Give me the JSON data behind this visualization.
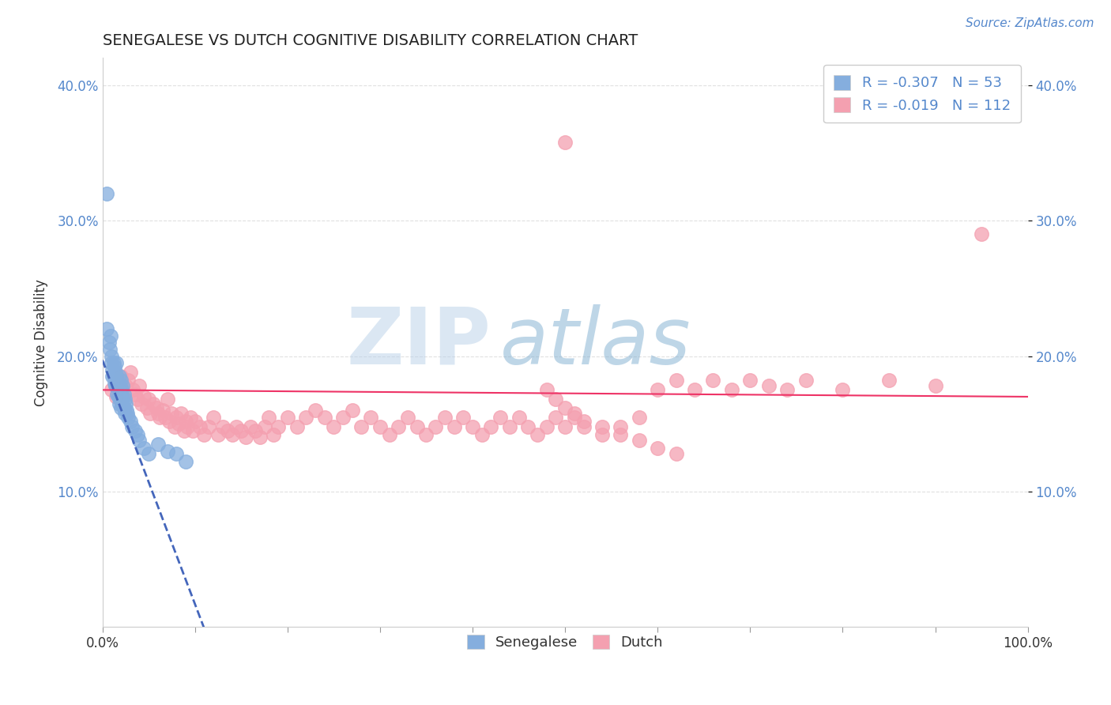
{
  "title": "SENEGALESE VS DUTCH COGNITIVE DISABILITY CORRELATION CHART",
  "source_text": "Source: ZipAtlas.com",
  "ylabel": "Cognitive Disability",
  "xlim": [
    0.0,
    1.0
  ],
  "ylim": [
    0.0,
    0.42
  ],
  "yticks": [
    0.1,
    0.2,
    0.3,
    0.4
  ],
  "ytick_labels": [
    "10.0%",
    "20.0%",
    "30.0%",
    "40.0%"
  ],
  "xtick_labels_left": "0.0%",
  "xtick_labels_right": "100.0%",
  "legend_blue_label": "R = -0.307   N = 53",
  "legend_pink_label": "R = -0.019   N = 112",
  "legend_bottom_blue": "Senegalese",
  "legend_bottom_pink": "Dutch",
  "blue_color": "#85AEDE",
  "pink_color": "#F4A0B0",
  "blue_line_color": "#4466BB",
  "pink_line_color": "#EE3366",
  "watermark_zip": "ZIP",
  "watermark_atlas": "atlas",
  "watermark_color_zip": "#B8D0E8",
  "watermark_color_atlas": "#7FAED0",
  "background_color": "#FFFFFF",
  "grid_color": "#DDDDDD",
  "title_color": "#222222",
  "axis_label_color": "#333333",
  "tick_color_blue": "#5588CC",
  "senegalese_x": [
    0.005,
    0.007,
    0.008,
    0.009,
    0.01,
    0.01,
    0.011,
    0.011,
    0.012,
    0.012,
    0.013,
    0.013,
    0.014,
    0.014,
    0.015,
    0.015,
    0.015,
    0.016,
    0.016,
    0.017,
    0.017,
    0.018,
    0.018,
    0.018,
    0.019,
    0.019,
    0.02,
    0.02,
    0.02,
    0.021,
    0.021,
    0.022,
    0.022,
    0.023,
    0.023,
    0.024,
    0.024,
    0.025,
    0.026,
    0.027,
    0.028,
    0.03,
    0.032,
    0.035,
    0.038,
    0.04,
    0.045,
    0.05,
    0.06,
    0.07,
    0.08,
    0.09,
    0.005
  ],
  "senegalese_y": [
    0.22,
    0.21,
    0.205,
    0.215,
    0.195,
    0.2,
    0.19,
    0.185,
    0.195,
    0.185,
    0.192,
    0.18,
    0.188,
    0.178,
    0.195,
    0.185,
    0.178,
    0.182,
    0.172,
    0.18,
    0.17,
    0.185,
    0.175,
    0.165,
    0.178,
    0.168,
    0.182,
    0.172,
    0.162,
    0.175,
    0.165,
    0.178,
    0.168,
    0.172,
    0.162,
    0.168,
    0.158,
    0.165,
    0.16,
    0.158,
    0.155,
    0.152,
    0.148,
    0.145,
    0.142,
    0.138,
    0.132,
    0.128,
    0.135,
    0.13,
    0.128,
    0.122,
    0.32
  ],
  "dutch_x": [
    0.01,
    0.015,
    0.02,
    0.025,
    0.028,
    0.03,
    0.033,
    0.035,
    0.038,
    0.04,
    0.042,
    0.045,
    0.048,
    0.05,
    0.052,
    0.055,
    0.058,
    0.06,
    0.062,
    0.065,
    0.068,
    0.07,
    0.072,
    0.075,
    0.078,
    0.08,
    0.082,
    0.085,
    0.088,
    0.09,
    0.092,
    0.095,
    0.098,
    0.1,
    0.105,
    0.11,
    0.115,
    0.12,
    0.125,
    0.13,
    0.135,
    0.14,
    0.145,
    0.15,
    0.155,
    0.16,
    0.165,
    0.17,
    0.175,
    0.18,
    0.185,
    0.19,
    0.2,
    0.21,
    0.22,
    0.23,
    0.24,
    0.25,
    0.26,
    0.27,
    0.28,
    0.29,
    0.3,
    0.31,
    0.32,
    0.33,
    0.34,
    0.35,
    0.36,
    0.37,
    0.38,
    0.39,
    0.4,
    0.41,
    0.42,
    0.43,
    0.44,
    0.45,
    0.46,
    0.47,
    0.48,
    0.49,
    0.5,
    0.51,
    0.52,
    0.54,
    0.56,
    0.58,
    0.6,
    0.62,
    0.64,
    0.66,
    0.68,
    0.7,
    0.72,
    0.74,
    0.76,
    0.8,
    0.85,
    0.9,
    0.48,
    0.49,
    0.5,
    0.51,
    0.52,
    0.54,
    0.56,
    0.58,
    0.6,
    0.62,
    0.5,
    0.95
  ],
  "dutch_y": [
    0.175,
    0.17,
    0.185,
    0.178,
    0.182,
    0.188,
    0.175,
    0.172,
    0.168,
    0.178,
    0.165,
    0.17,
    0.162,
    0.168,
    0.158,
    0.165,
    0.162,
    0.158,
    0.155,
    0.16,
    0.155,
    0.168,
    0.152,
    0.158,
    0.148,
    0.155,
    0.15,
    0.158,
    0.145,
    0.152,
    0.148,
    0.155,
    0.145,
    0.152,
    0.148,
    0.142,
    0.148,
    0.155,
    0.142,
    0.148,
    0.145,
    0.142,
    0.148,
    0.145,
    0.14,
    0.148,
    0.145,
    0.14,
    0.148,
    0.155,
    0.142,
    0.148,
    0.155,
    0.148,
    0.155,
    0.16,
    0.155,
    0.148,
    0.155,
    0.16,
    0.148,
    0.155,
    0.148,
    0.142,
    0.148,
    0.155,
    0.148,
    0.142,
    0.148,
    0.155,
    0.148,
    0.155,
    0.148,
    0.142,
    0.148,
    0.155,
    0.148,
    0.155,
    0.148,
    0.142,
    0.148,
    0.155,
    0.148,
    0.155,
    0.148,
    0.142,
    0.148,
    0.155,
    0.175,
    0.182,
    0.175,
    0.182,
    0.175,
    0.182,
    0.178,
    0.175,
    0.182,
    0.175,
    0.182,
    0.178,
    0.175,
    0.168,
    0.162,
    0.158,
    0.152,
    0.148,
    0.142,
    0.138,
    0.132,
    0.128,
    0.358,
    0.29
  ]
}
